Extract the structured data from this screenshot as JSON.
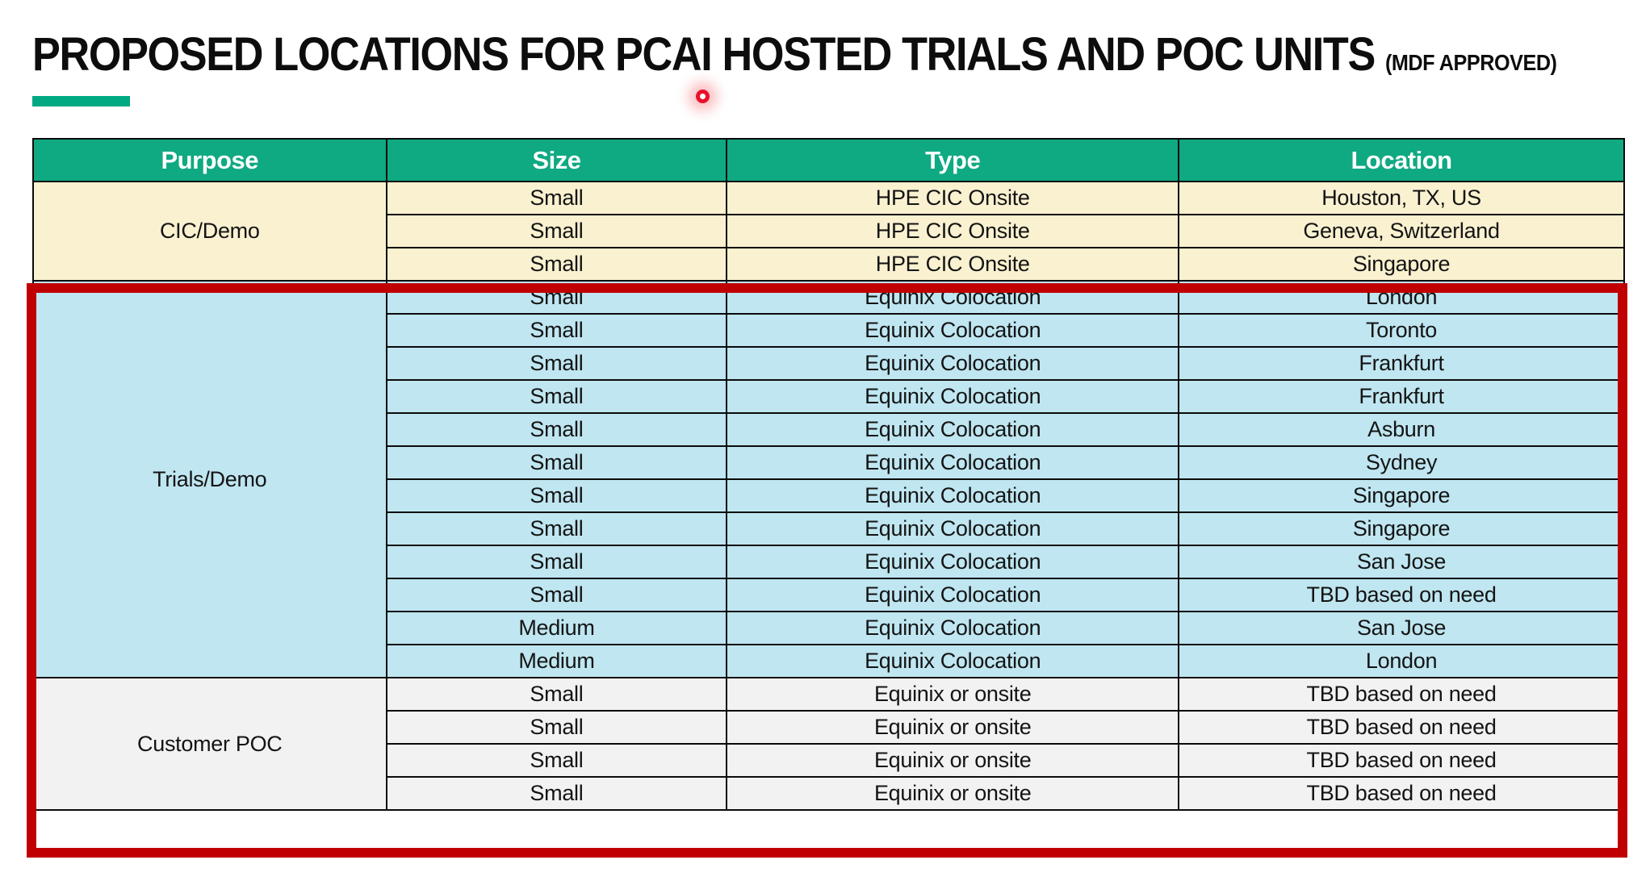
{
  "title": {
    "text": "PROPOSED LOCATIONS FOR PCAI HOSTED TRIALS AND POC UNITS",
    "suffix": "(MDF APPROVED)"
  },
  "decor": {
    "underline_color": "#01A982",
    "laser_dot_color": "#E8112D",
    "highlight_box_color": "#C00000"
  },
  "table": {
    "header": {
      "bg": "#0FA982",
      "text_color": "#FFFFFF",
      "columns": [
        "Purpose",
        "Size",
        "Type",
        "Location"
      ]
    },
    "sections": [
      {
        "purpose": "CIC/Demo",
        "bg": "#FAF1D0",
        "rows": [
          {
            "size": "Small",
            "type": "HPE CIC Onsite",
            "location": "Houston, TX, US"
          },
          {
            "size": "Small",
            "type": "HPE CIC Onsite",
            "location": "Geneva, Switzerland"
          },
          {
            "size": "Small",
            "type": "HPE CIC Onsite",
            "location": "Singapore"
          }
        ]
      },
      {
        "purpose": "Trials/Demo",
        "bg": "#BFE6F1",
        "rows": [
          {
            "size": "Small",
            "type": "Equinix Colocation",
            "location": "London"
          },
          {
            "size": "Small",
            "type": "Equinix Colocation",
            "location": "Toronto"
          },
          {
            "size": "Small",
            "type": "Equinix Colocation",
            "location": "Frankfurt"
          },
          {
            "size": "Small",
            "type": "Equinix Colocation",
            "location": "Frankfurt"
          },
          {
            "size": "Small",
            "type": "Equinix Colocation",
            "location": "Asburn"
          },
          {
            "size": "Small",
            "type": "Equinix Colocation",
            "location": "Sydney"
          },
          {
            "size": "Small",
            "type": "Equinix Colocation",
            "location": "Singapore"
          },
          {
            "size": "Small",
            "type": "Equinix Colocation",
            "location": "Singapore"
          },
          {
            "size": "Small",
            "type": "Equinix Colocation",
            "location": "San Jose"
          },
          {
            "size": "Small",
            "type": "Equinix Colocation",
            "location": "TBD based on need"
          },
          {
            "size": "Medium",
            "type": "Equinix Colocation",
            "location": "San Jose"
          },
          {
            "size": "Medium",
            "type": "Equinix Colocation",
            "location": "London"
          }
        ]
      },
      {
        "purpose": "Customer POC",
        "bg": "#F2F2F2",
        "rows": [
          {
            "size": "Small",
            "type": "Equinix or onsite",
            "location": "TBD based on need"
          },
          {
            "size": "Small",
            "type": "Equinix or onsite",
            "location": "TBD based on need"
          },
          {
            "size": "Small",
            "type": "Equinix or onsite",
            "location": "TBD based on need"
          },
          {
            "size": "Small",
            "type": "Equinix or onsite",
            "location": "TBD based on need"
          }
        ]
      }
    ]
  }
}
